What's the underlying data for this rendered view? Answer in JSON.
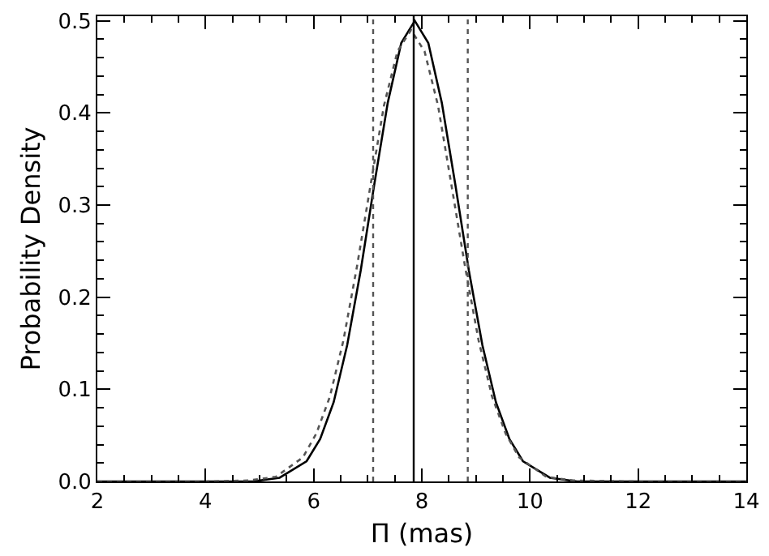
{
  "chart_data": {
    "type": "line",
    "xlabel": "Π (mas)",
    "ylabel": "Probability Density",
    "xlim": [
      2,
      14
    ],
    "xticks": [
      2,
      4,
      6,
      8,
      10,
      12,
      14
    ],
    "ylim": [
      0,
      0.505
    ],
    "yticks": [
      {
        "value": 0,
        "label": "0.0"
      },
      0.1,
      0.2,
      0.3,
      0.4,
      0.5
    ],
    "marker": "none",
    "series": [
      {
        "color": "#000000",
        "line_style": "solid",
        "x": [
          2,
          4,
          4.87,
          5.37,
          5.87,
          6.12,
          6.37,
          6.62,
          6.87,
          7.12,
          7.37,
          7.62,
          7.87,
          8.12,
          8.37,
          8.62,
          8.87,
          9.12,
          9.37,
          9.62,
          9.87,
          10.37,
          10.87,
          12,
          14
        ],
        "values": [
          0,
          0,
          0,
          0.004,
          0.022,
          0.046,
          0.086,
          0.148,
          0.229,
          0.322,
          0.411,
          0.476,
          0.5,
          0.476,
          0.411,
          0.322,
          0.229,
          0.148,
          0.086,
          0.046,
          0.022,
          0.004,
          0,
          0,
          0
        ]
      },
      {
        "color": "#555555",
        "line_style": "dotted",
        "x": [
          2,
          4,
          4.8,
          5.3,
          5.8,
          6.05,
          6.3,
          6.55,
          6.8,
          7.05,
          7.3,
          7.55,
          7.8,
          8.05,
          8.3,
          8.55,
          8.8,
          9.05,
          9.3,
          9.55,
          9.8,
          10.3,
          10.8,
          12,
          14
        ],
        "values": [
          0,
          0,
          0.001,
          0.005,
          0.026,
          0.052,
          0.092,
          0.153,
          0.233,
          0.321,
          0.408,
          0.467,
          0.49,
          0.467,
          0.408,
          0.321,
          0.233,
          0.153,
          0.092,
          0.052,
          0.026,
          0.005,
          0.001,
          0,
          0
        ]
      }
    ],
    "ref_lines": [
      {
        "axis": "x",
        "value": 7.85,
        "color": "#000000",
        "line_style": "solid"
      },
      {
        "axis": "x",
        "value": 7.1,
        "color": "#555555",
        "line_style": "dotted"
      },
      {
        "axis": "x",
        "value": 8.85,
        "color": "#555555",
        "line_style": "dotted"
      }
    ]
  }
}
